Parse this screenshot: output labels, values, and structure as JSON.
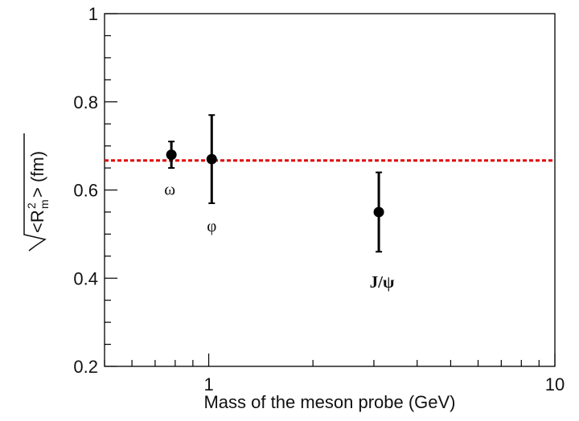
{
  "chart_data": {
    "type": "scatter",
    "xlabel": "Mass of the meson probe (GeV)",
    "ylabel": {
      "pre": "<R",
      "sup": "2",
      "sub": "m",
      "post": "> (fm)"
    },
    "xscale": "log",
    "xlim": [
      0.5,
      10
    ],
    "xticks": [
      1,
      10
    ],
    "xminor": [
      0.5,
      0.6,
      0.7,
      0.8,
      0.9,
      2,
      3,
      4,
      5,
      6,
      7,
      8,
      9
    ],
    "ylim": [
      0.2,
      1
    ],
    "yticks": [
      0.2,
      0.4,
      0.6,
      0.8,
      1
    ],
    "yminor": [
      0.25,
      0.3,
      0.35,
      0.45,
      0.5,
      0.55,
      0.65,
      0.7,
      0.75,
      0.85,
      0.9,
      0.95
    ],
    "hline": 0.667,
    "hline_color": "#e00000",
    "series": [
      {
        "color": "#000000",
        "x": [
          0.78,
          1.02,
          3.1
        ],
        "y": [
          0.68,
          0.67,
          0.55
        ],
        "errors": [
          0.03,
          0.1,
          0.09
        ],
        "labels": [
          "ω",
          "φ",
          "J/ψ"
        ]
      }
    ]
  }
}
